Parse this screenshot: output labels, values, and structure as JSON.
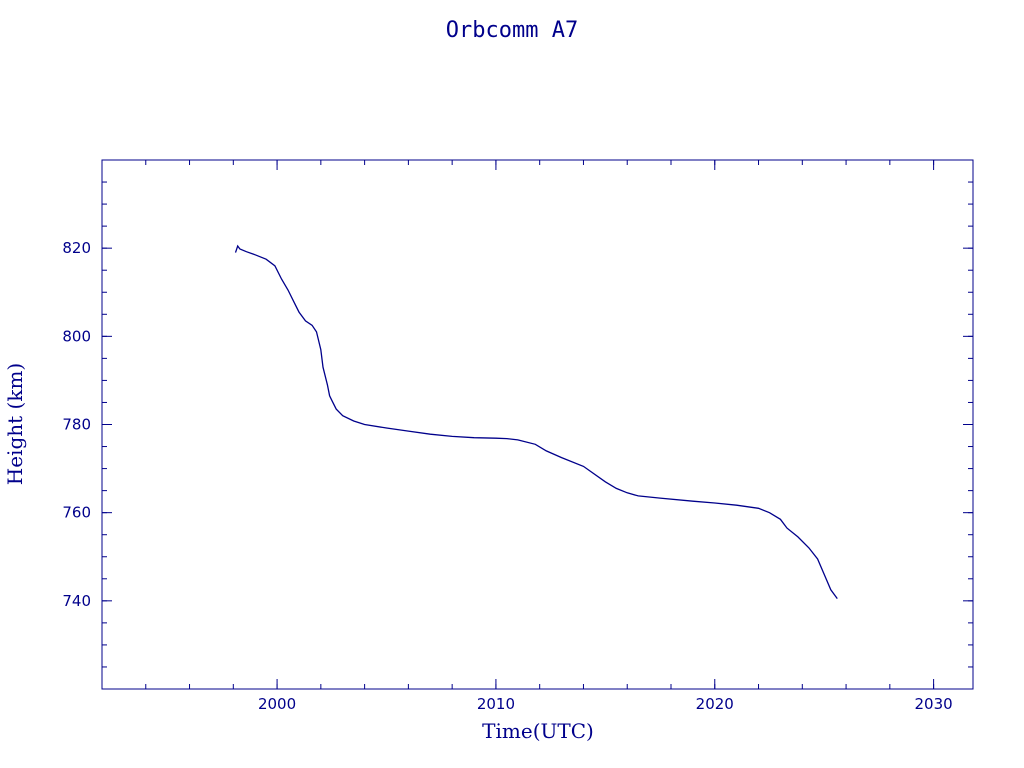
{
  "colors": {
    "ink": "#00008b",
    "background": "#ffffff"
  },
  "chart_data": {
    "type": "line",
    "title": "Orbcomm A7",
    "xlabel": "Time(UTC)",
    "ylabel": "Height (km)",
    "xlim": [
      1992,
      2031.8
    ],
    "ylim": [
      720,
      840
    ],
    "xticks": [
      2000,
      2010,
      2020,
      2030
    ],
    "yticks": [
      740,
      760,
      780,
      800,
      820
    ],
    "x_minor_step": 2,
    "y_minor_step": 5,
    "grid": false,
    "series": [
      {
        "x": [
          1998.1,
          1998.2,
          1998.3,
          1998.6,
          1999.0,
          1999.5,
          1999.9,
          2000.2,
          2000.5,
          2000.8,
          2001.0,
          2001.3,
          2001.6,
          2001.8,
          2002.0,
          2002.1,
          2002.3,
          2002.4,
          2002.5,
          2002.7,
          2003.0,
          2003.5,
          2004.0,
          2005.0,
          2006.0,
          2007.0,
          2008.0,
          2009.0,
          2010.0,
          2010.5,
          2011.0,
          2011.8,
          2012.3,
          2013.0,
          2014.0,
          2015.0,
          2015.5,
          2016.0,
          2016.5,
          2017.5,
          2019.0,
          2020.0,
          2021.0,
          2022.0,
          2022.5,
          2023.0,
          2023.3,
          2023.8,
          2024.3,
          2024.7,
          2025.0,
          2025.3,
          2025.6
        ],
        "y": [
          819,
          820.5,
          819.8,
          819.2,
          818.5,
          817.5,
          816,
          813,
          810.5,
          807.5,
          805.5,
          803.5,
          802.5,
          801,
          797,
          793,
          789,
          786.5,
          785.5,
          783.5,
          782,
          780.8,
          780,
          779.2,
          778.5,
          777.8,
          777.3,
          777.0,
          776.9,
          776.8,
          776.5,
          775.5,
          774,
          772.5,
          770.5,
          767,
          765.5,
          764.5,
          763.8,
          763.3,
          762.6,
          762.2,
          761.7,
          761.0,
          760.0,
          758.5,
          756.5,
          754.5,
          752,
          749.5,
          746,
          742.5,
          740.5
        ]
      }
    ]
  }
}
